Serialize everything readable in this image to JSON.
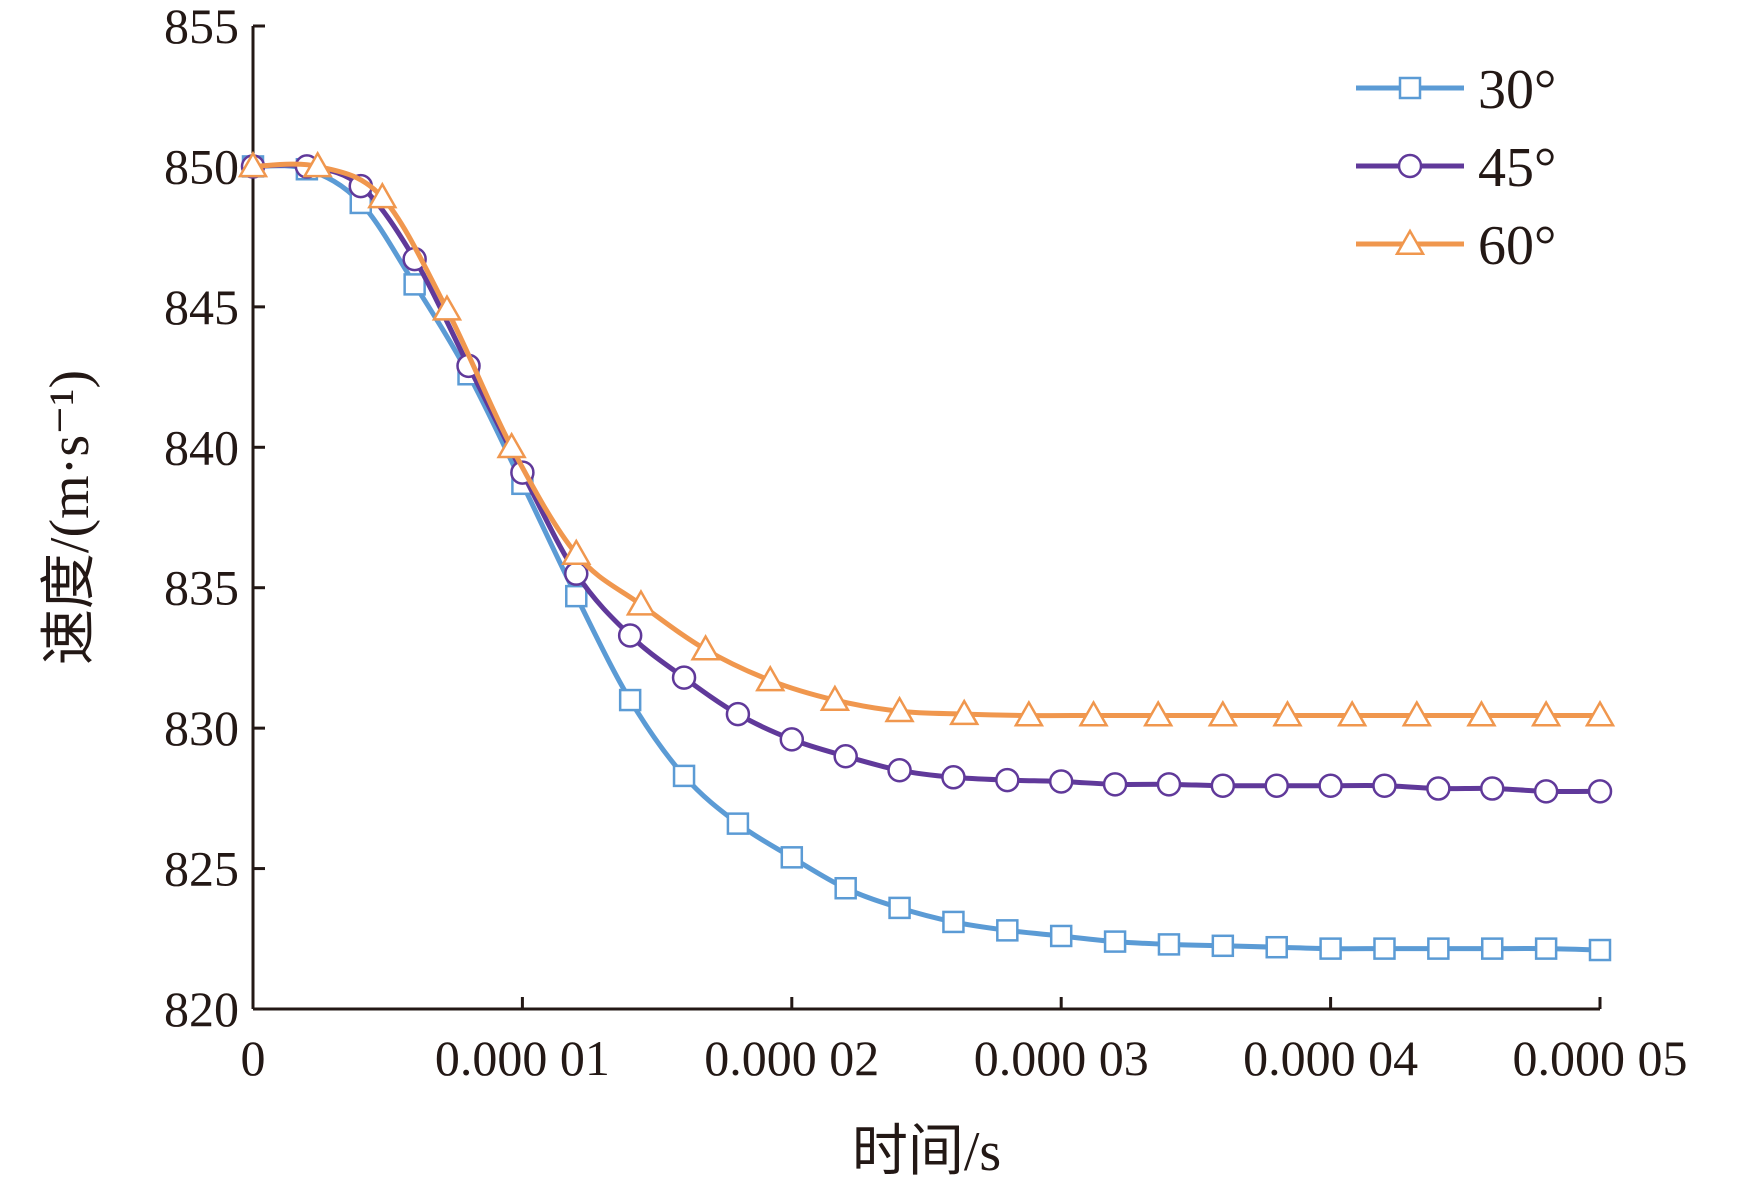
{
  "chart_data": {
    "type": "line",
    "xlabel": "时间/s",
    "ylabel": "速度/(m·s⁻¹)",
    "xlim": [
      0,
      5e-05
    ],
    "ylim": [
      820,
      855
    ],
    "x_ticks": [
      0,
      1e-05,
      2e-05,
      3e-05,
      4e-05,
      5e-05
    ],
    "x_tick_labels": [
      "0",
      "0.000 01",
      "0.000 02",
      "0.000 03",
      "0.000 04",
      "0.000 05"
    ],
    "y_ticks": [
      820,
      825,
      830,
      835,
      840,
      845,
      850,
      855
    ],
    "y_tick_labels": [
      "820",
      "825",
      "830",
      "835",
      "840",
      "845",
      "850",
      "855"
    ],
    "grid": false,
    "legend_position": "top-right",
    "series": [
      {
        "name": "30°",
        "color": "#5b9bd5",
        "marker": "square",
        "x": [
          0,
          2e-06,
          4e-06,
          6e-06,
          8e-06,
          1e-05,
          1.2e-05,
          1.4e-05,
          1.6e-05,
          1.8e-05,
          2e-05,
          2.2e-05,
          2.4e-05,
          2.6e-05,
          2.8e-05,
          3e-05,
          3.2e-05,
          3.4e-05,
          3.6e-05,
          3.8e-05,
          4e-05,
          4.2e-05,
          4.4e-05,
          4.6e-05,
          4.8e-05,
          5e-05
        ],
        "values": [
          850.0,
          849.9,
          848.7,
          845.8,
          842.6,
          838.7,
          834.7,
          831.0,
          828.3,
          826.6,
          825.4,
          824.3,
          823.6,
          823.1,
          822.8,
          822.6,
          822.4,
          822.3,
          822.25,
          822.2,
          822.15,
          822.15,
          822.15,
          822.15,
          822.15,
          822.1
        ]
      },
      {
        "name": "45°",
        "color": "#60399a",
        "marker": "circle",
        "x": [
          0,
          2e-06,
          4e-06,
          6e-06,
          8e-06,
          1e-05,
          1.2e-05,
          1.4e-05,
          1.6e-05,
          1.8e-05,
          2e-05,
          2.2e-05,
          2.4e-05,
          2.6e-05,
          2.8e-05,
          3e-05,
          3.2e-05,
          3.4e-05,
          3.6e-05,
          3.8e-05,
          4e-05,
          4.2e-05,
          4.4e-05,
          4.6e-05,
          4.8e-05,
          5e-05
        ],
        "values": [
          850.0,
          850.0,
          849.3,
          846.7,
          842.9,
          839.1,
          835.5,
          833.3,
          831.8,
          830.5,
          829.6,
          829.0,
          828.5,
          828.25,
          828.15,
          828.1,
          828.0,
          828.0,
          827.95,
          827.95,
          827.95,
          827.95,
          827.85,
          827.85,
          827.75,
          827.75
        ]
      },
      {
        "name": "60°",
        "color": "#f0974e",
        "marker": "triangle",
        "x": [
          0,
          2.4e-06,
          4.8e-06,
          7.2e-06,
          9.6e-06,
          1.2e-05,
          1.44e-05,
          1.68e-05,
          1.92e-05,
          2.16e-05,
          2.4e-05,
          2.64e-05,
          2.88e-05,
          3.12e-05,
          3.36e-05,
          3.6e-05,
          3.84e-05,
          4.08e-05,
          4.32e-05,
          4.56e-05,
          4.8e-05,
          5e-05
        ],
        "values": [
          850.0,
          850.0,
          848.9,
          844.9,
          840.0,
          836.2,
          834.4,
          832.8,
          831.7,
          831.0,
          830.6,
          830.5,
          830.45,
          830.45,
          830.45,
          830.45,
          830.45,
          830.45,
          830.45,
          830.45,
          830.45,
          830.45
        ]
      }
    ]
  }
}
